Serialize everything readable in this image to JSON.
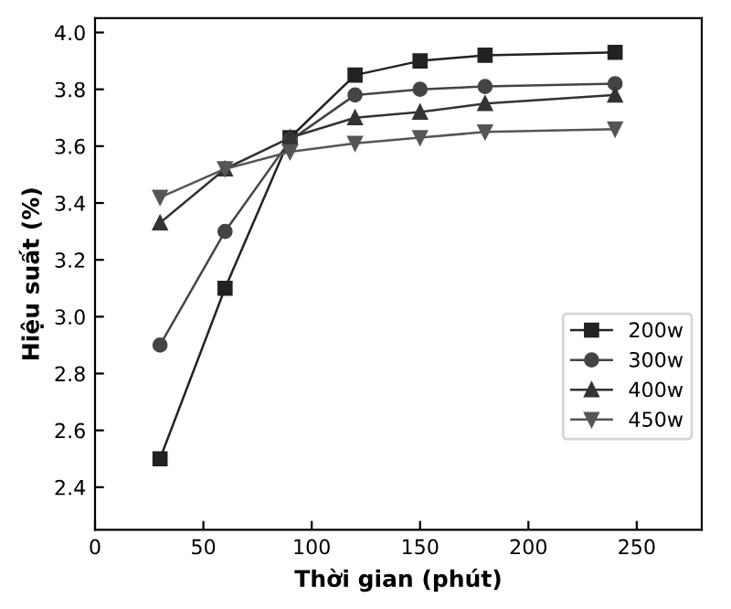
{
  "chart_data": {
    "type": "line",
    "xlabel": "Thời gian (phút)",
    "ylabel": "Hiệu suất (%)",
    "x": [
      30,
      60,
      90,
      120,
      150,
      180,
      240
    ],
    "series": [
      {
        "name": "200w",
        "color": "#222222",
        "marker": "square",
        "values": [
          2.5,
          3.1,
          3.63,
          3.85,
          3.9,
          3.92,
          3.93
        ]
      },
      {
        "name": "300w",
        "color": "#444444",
        "marker": "circle",
        "values": [
          2.9,
          3.3,
          3.62,
          3.78,
          3.8,
          3.81,
          3.82
        ]
      },
      {
        "name": "400w",
        "color": "#333333",
        "marker": "triangle",
        "values": [
          3.33,
          3.52,
          3.63,
          3.7,
          3.72,
          3.75,
          3.78
        ]
      },
      {
        "name": "450w",
        "color": "#555555",
        "marker": "triangle_down",
        "values": [
          3.42,
          3.52,
          3.58,
          3.61,
          3.63,
          3.65,
          3.66
        ]
      }
    ],
    "xlim": [
      0,
      280
    ],
    "xticks": [
      0,
      50,
      100,
      150,
      200,
      250
    ],
    "ylim": [
      2.25,
      4.05
    ],
    "yticks": [
      {
        "value": 2.4,
        "label": "2.4"
      },
      {
        "value": 2.6,
        "label": "2.6"
      },
      {
        "value": 2.8,
        "label": "2.8"
      },
      {
        "value": 3.0,
        "label": "3.0"
      },
      {
        "value": 3.2,
        "label": "3.2"
      },
      {
        "value": 3.4,
        "label": "3.4"
      },
      {
        "value": 3.6,
        "label": "3.6"
      },
      {
        "value": 3.8,
        "label": "3.8"
      },
      {
        "value": 4.0,
        "label": "4.0"
      }
    ],
    "legend": "right",
    "grid": false,
    "line_style": "solid"
  }
}
